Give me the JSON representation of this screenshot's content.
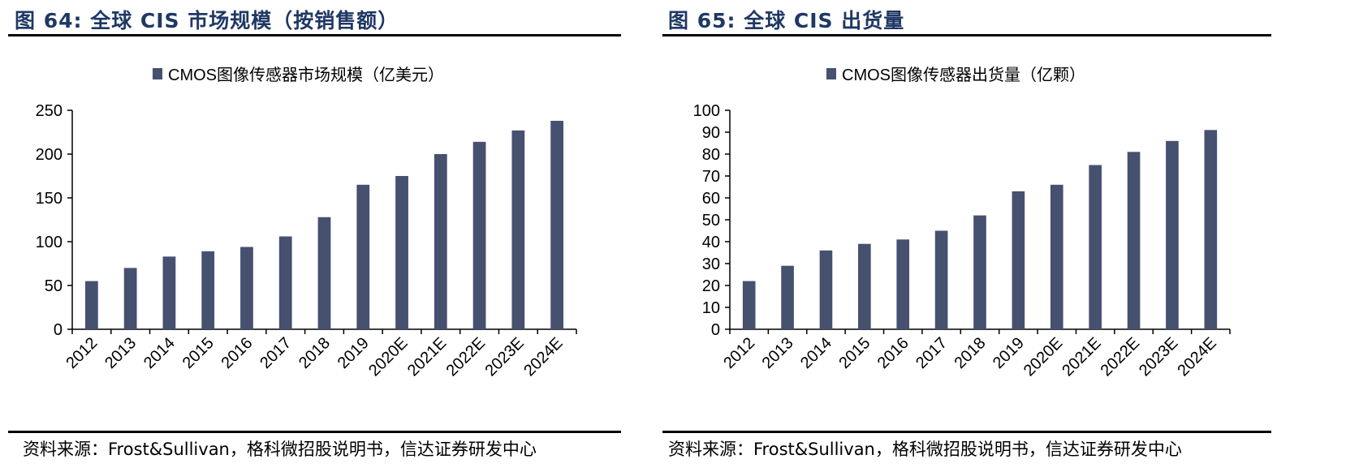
{
  "colors": {
    "bar": "#465170",
    "title": "#1f3864"
  },
  "panels": [
    {
      "title": "图 64:  全球 CIS 市场规模（按销售额）",
      "source": "资料来源：Frost&Sullivan，格科微招股说明书，信达证券研发中心",
      "chart_data": {
        "type": "bar",
        "categories": [
          "2012",
          "2013",
          "2014",
          "2015",
          "2016",
          "2017",
          "2018",
          "2019",
          "2020E",
          "2021E",
          "2022E",
          "2023E",
          "2024E"
        ],
        "series": [
          {
            "name": "CMOS图像传感器市场规模（亿美元）",
            "values": [
              55,
              70,
              83,
              89,
              94,
              106,
              128,
              165,
              175,
              200,
              214,
              227,
              238
            ]
          }
        ],
        "ylim": [
          0,
          250
        ],
        "yticks": [
          0,
          50,
          100,
          150,
          200,
          250
        ],
        "legend": "top-center",
        "grid": false
      }
    },
    {
      "title": "图 65:  全球 CIS 出货量",
      "source": "资料来源：Frost&Sullivan，格科微招股说明书，信达证券研发中心",
      "chart_data": {
        "type": "bar",
        "categories": [
          "2012",
          "2013",
          "2014",
          "2015",
          "2016",
          "2017",
          "2018",
          "2019",
          "2020E",
          "2021E",
          "2022E",
          "2023E",
          "2024E"
        ],
        "series": [
          {
            "name": "CMOS图像传感器出货量（亿颗）",
            "values": [
              22,
              29,
              36,
              39,
              41,
              45,
              52,
              63,
              66,
              75,
              81,
              86,
              91
            ]
          }
        ],
        "ylim": [
          0,
          100
        ],
        "yticks": [
          0,
          10,
          20,
          30,
          40,
          50,
          60,
          70,
          80,
          90,
          100
        ],
        "legend": "top-center",
        "grid": false
      }
    }
  ]
}
